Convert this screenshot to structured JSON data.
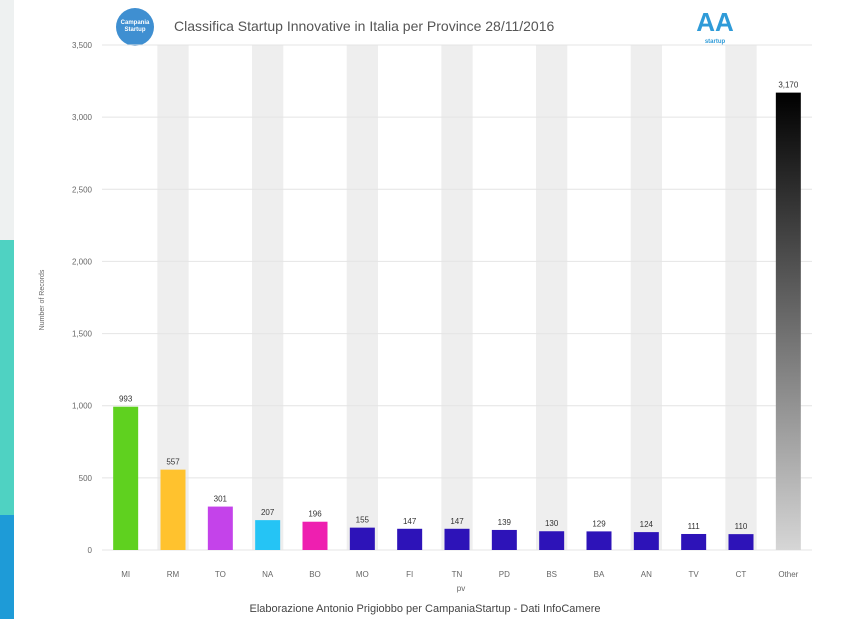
{
  "header": {
    "logo_left_text": "Campania Startup",
    "title": "Classifica Startup Innovative in Italia per Province 28/11/2016",
    "logo_right_mark": "AA",
    "logo_right_text": "startup"
  },
  "chart_data": {
    "type": "bar",
    "title": "Classifica Startup Innovative in Italia per Province 28/11/2016",
    "xlabel": "pv",
    "ylabel": "Number of Records",
    "ylim": [
      0,
      3500
    ],
    "yticks": [
      0,
      500,
      1000,
      1500,
      2000,
      2500,
      3000,
      3500
    ],
    "ytick_labels": [
      "0",
      "500",
      "1,000",
      "1,500",
      "2,000",
      "2,500",
      "3,000",
      "3,500"
    ],
    "grid": true,
    "categories": [
      "MI",
      "RM",
      "TO",
      "NA",
      "BO",
      "MO",
      "FI",
      "TN",
      "PD",
      "BS",
      "BA",
      "AN",
      "TV",
      "CT",
      "Other"
    ],
    "values": [
      993,
      557,
      301,
      207,
      196,
      155,
      147,
      147,
      139,
      130,
      129,
      124,
      111,
      110,
      3170
    ],
    "value_labels": [
      "993",
      "557",
      "301",
      "207",
      "196",
      "155",
      "147",
      "147",
      "139",
      "130",
      "129",
      "124",
      "111",
      "110",
      "3,170"
    ],
    "colors": [
      "#5fd11f",
      "#ffc22e",
      "#c443ea",
      "#25c4f5",
      "#ee1fb0",
      "#2d13b8",
      "#2d13b8",
      "#2d13b8",
      "#2d13b8",
      "#2d13b8",
      "#2d13b8",
      "#2d13b8",
      "#2d13b8",
      "#2d13b8",
      "gradient-black-to-gray"
    ],
    "gradient_colors": [
      "#000000",
      "#d6d6d6"
    ],
    "caption": "Elaborazione Antonio Prigiobbo per CampaniaStartup - Dati InfoCamere"
  },
  "colors": {
    "band": "#eeeeee",
    "gridline": "#e4e4e4",
    "axis_text": "#666666",
    "bar_label": "#333333"
  }
}
